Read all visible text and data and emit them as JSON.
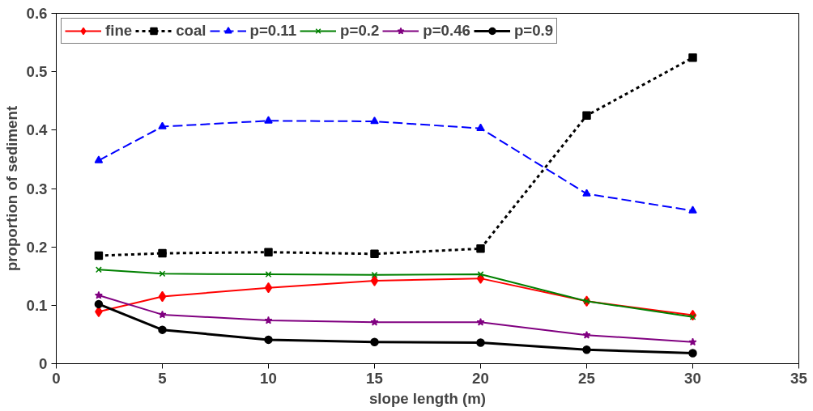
{
  "chart_data": {
    "type": "line",
    "xlabel": "slope length (m)",
    "ylabel": "proportion of sediment",
    "x": [
      2,
      5,
      10,
      15,
      20,
      25,
      30
    ],
    "xlim": [
      0,
      35
    ],
    "xticks": [
      0,
      5,
      10,
      15,
      20,
      25,
      30,
      35
    ],
    "ylim": [
      0,
      0.6
    ],
    "yticks": [
      0,
      0.1,
      0.2,
      0.3,
      0.4,
      0.5,
      0.6
    ],
    "grid": false,
    "legend": "top left",
    "series": [
      {
        "name": "fine",
        "color": "#ff0000",
        "marker": "diamond",
        "line_style": "solid",
        "values": [
          0.089,
          0.115,
          0.13,
          0.142,
          0.146,
          0.107,
          0.083
        ]
      },
      {
        "name": "coal",
        "color": "#000000",
        "marker": "square",
        "line_style": "dotted",
        "values": [
          0.185,
          0.189,
          0.191,
          0.188,
          0.197,
          0.425,
          0.524
        ]
      },
      {
        "name": "p=0.11",
        "color": "#0000ff",
        "marker": "triangle",
        "line_style": "dashed",
        "values": [
          0.348,
          0.406,
          0.416,
          0.415,
          0.403,
          0.291,
          0.262
        ]
      },
      {
        "name": "p=0.2",
        "color": "#008000",
        "marker": "cross",
        "line_style": "solid",
        "values": [
          0.161,
          0.154,
          0.153,
          0.152,
          0.153,
          0.107,
          0.08
        ]
      },
      {
        "name": "p=0.46",
        "color": "#800080",
        "marker": "star",
        "line_style": "solid",
        "values": [
          0.117,
          0.084,
          0.074,
          0.071,
          0.071,
          0.049,
          0.037
        ]
      },
      {
        "name": "p=0.9",
        "color": "#000000",
        "marker": "circle",
        "line_style": "solid",
        "values": [
          0.102,
          0.058,
          0.041,
          0.037,
          0.036,
          0.024,
          0.018
        ]
      }
    ]
  }
}
